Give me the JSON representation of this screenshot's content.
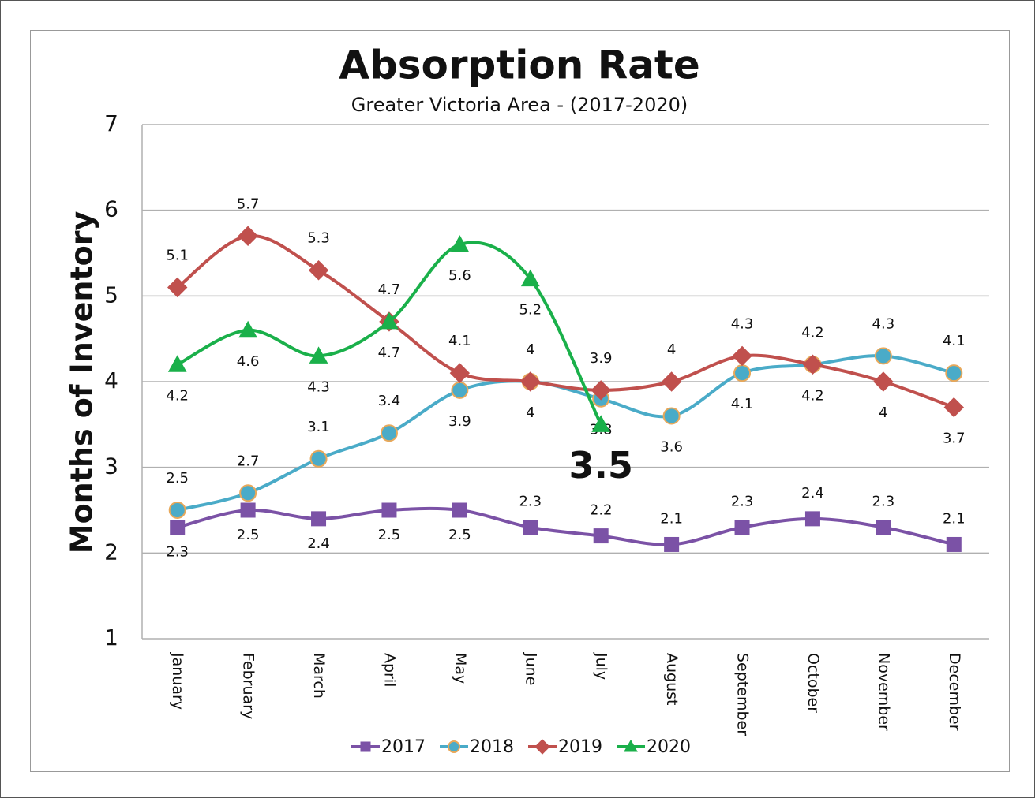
{
  "chart_data": {
    "type": "line",
    "title": "Absorption Rate",
    "subtitle": "Greater Victoria Area - (2017-2020)",
    "y_label": "Months of Inventory",
    "categories": [
      "January",
      "February",
      "March",
      "April",
      "May",
      "June",
      "July",
      "August",
      "September",
      "October",
      "November",
      "December"
    ],
    "ylim": [
      1,
      7
    ],
    "yticks": [
      1,
      2,
      3,
      4,
      5,
      6,
      7
    ],
    "grid": true,
    "series": [
      {
        "name": "2017",
        "color": "#7b52a6",
        "marker": "square",
        "values": [
          2.3,
          2.5,
          2.4,
          2.5,
          2.5,
          2.3,
          2.2,
          2.1,
          2.3,
          2.4,
          2.3,
          2.1
        ]
      },
      {
        "name": "2018",
        "color": "#4aabc8",
        "marker": "circle",
        "values": [
          2.5,
          2.7,
          3.1,
          3.4,
          3.9,
          4.0,
          3.8,
          3.6,
          4.1,
          4.2,
          4.3,
          4.1
        ]
      },
      {
        "name": "2019",
        "color": "#c0504d",
        "marker": "diamond",
        "values": [
          5.1,
          5.7,
          5.3,
          4.7,
          4.1,
          4.0,
          3.9,
          4.0,
          4.3,
          4.2,
          4.0,
          3.7
        ]
      },
      {
        "name": "2020",
        "color": "#1ab04a",
        "marker": "triangle",
        "values": [
          4.2,
          4.6,
          4.3,
          4.7,
          5.6,
          5.2,
          3.5,
          null,
          null,
          null,
          null,
          null
        ]
      }
    ]
  }
}
